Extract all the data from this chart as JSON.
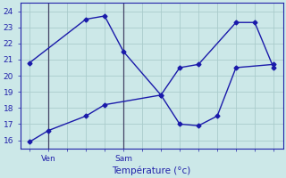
{
  "line1_x": [
    0,
    3,
    4,
    5,
    7,
    8,
    9,
    11,
    12,
    13
  ],
  "line1_y": [
    20.8,
    23.5,
    23.7,
    21.5,
    18.8,
    20.5,
    20.7,
    23.3,
    23.3,
    20.5
  ],
  "line2_x": [
    0,
    1,
    3,
    4,
    7,
    8,
    9,
    10,
    11,
    13
  ],
  "line2_y": [
    15.9,
    16.6,
    17.5,
    18.2,
    18.8,
    17.0,
    16.9,
    17.5,
    20.5,
    20.7
  ],
  "line_color": "#1a1aaa",
  "marker": "D",
  "marker_size": 2.5,
  "linewidth": 1.0,
  "vline_positions": [
    1,
    5
  ],
  "vline_color": "#444466",
  "ylim": [
    15.5,
    24.5
  ],
  "xlim": [
    -0.5,
    13.5
  ],
  "ytick_positions": [
    16,
    17,
    18,
    19,
    20,
    21,
    22,
    23,
    24
  ],
  "ytick_labels": [
    "16",
    "17",
    "18",
    "19",
    "20",
    "21",
    "22",
    "23",
    "24"
  ],
  "xtick_positions": [
    1,
    5
  ],
  "xtick_labels": [
    "Ven",
    "Sam"
  ],
  "xlabel": "Température (°c)",
  "bg_color": "#cce8e8",
  "grid_color": "#aacccc",
  "axis_color": "#2222aa",
  "text_color": "#2222aa",
  "tick_fontsize": 6.5,
  "label_fontsize": 7.5
}
